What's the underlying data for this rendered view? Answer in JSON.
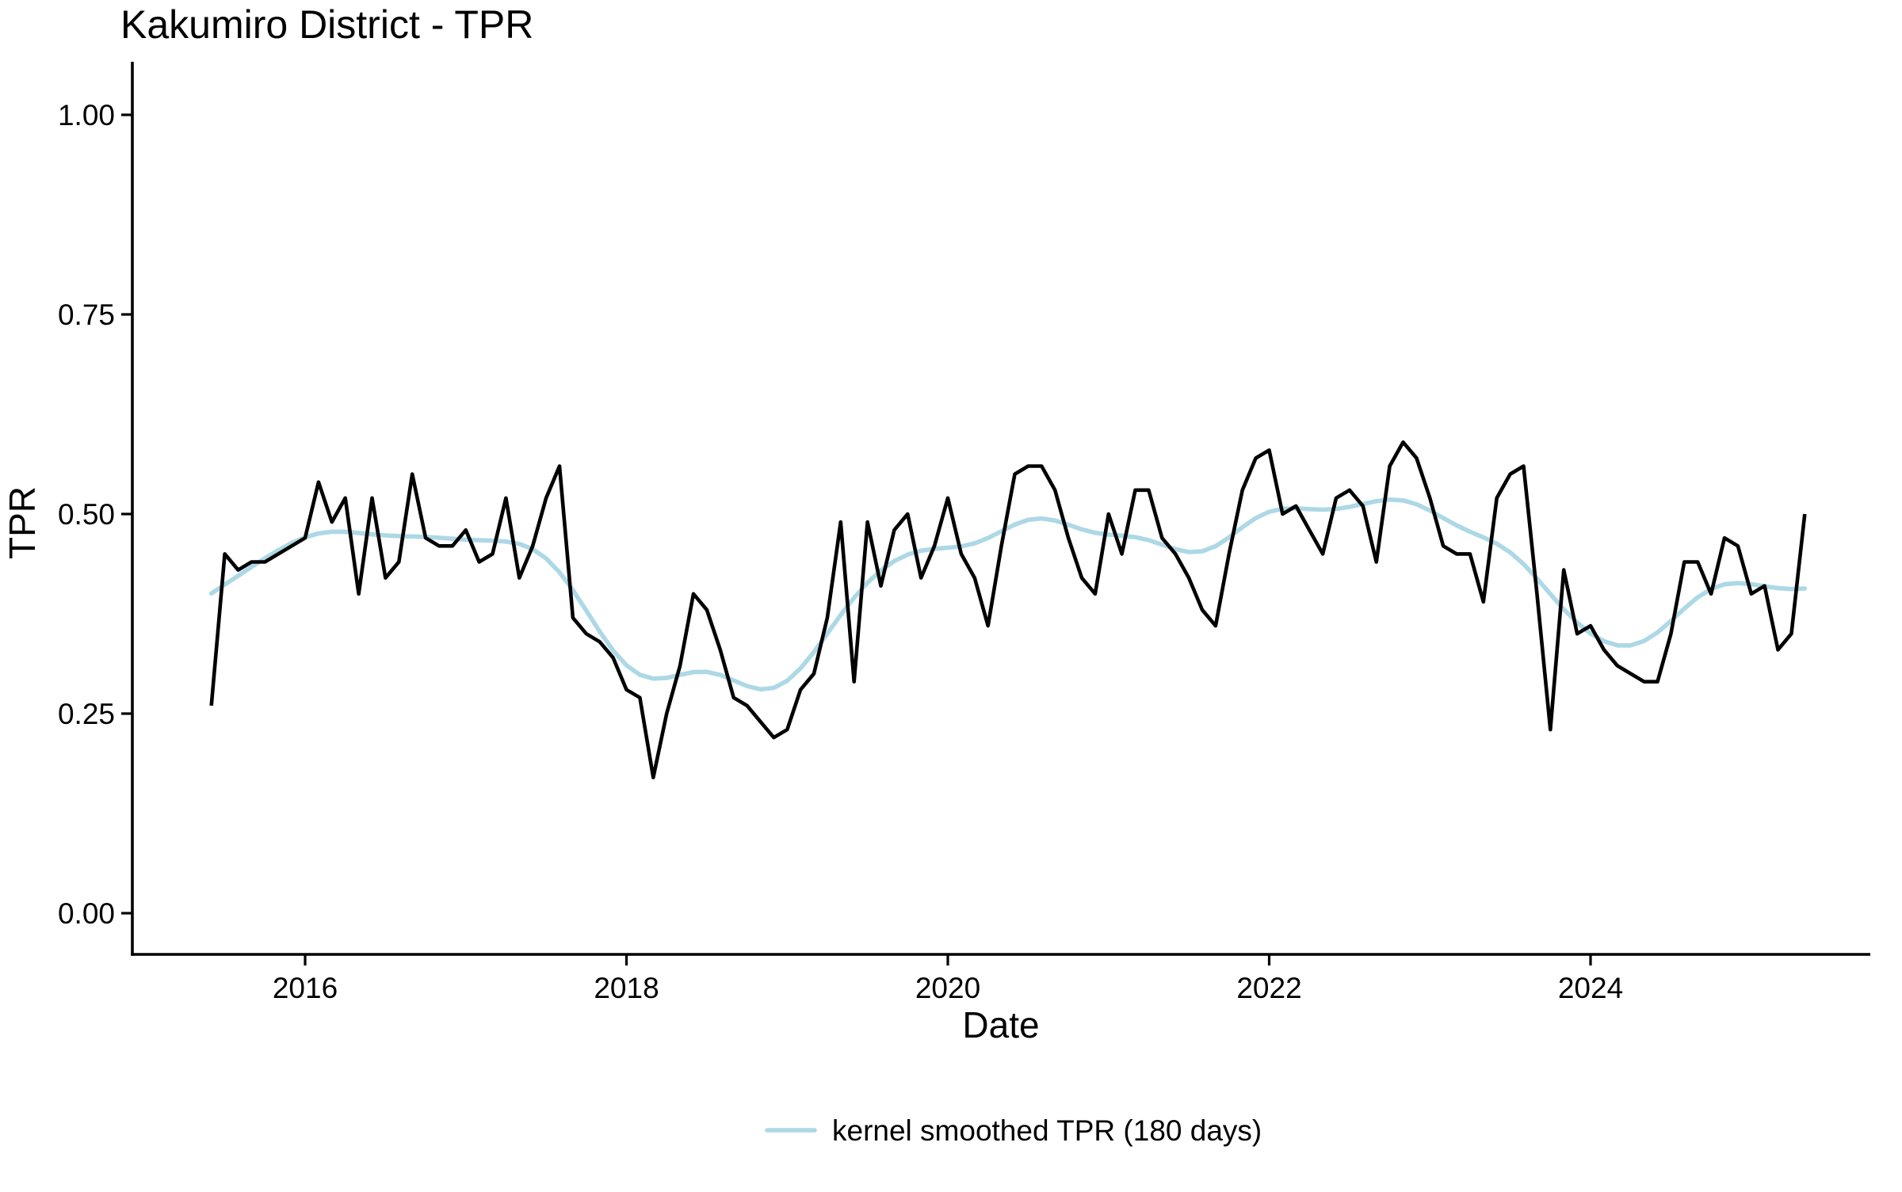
{
  "title": "Kakumiro District - TPR",
  "x_axis": {
    "label": "Date",
    "tick_labels": [
      "2016",
      "2018",
      "2020",
      "2022",
      "2024"
    ]
  },
  "y_axis": {
    "label": "TPR",
    "tick_labels": [
      "1.00",
      "0.75",
      "0.50",
      "0.25",
      "0.00"
    ]
  },
  "legend": {
    "items": [
      {
        "label": "kernel smoothed TPR (180 days)",
        "color": "#ADD8E6"
      }
    ]
  },
  "colors": {
    "raw_line": "#000000",
    "smoothed_line": "#ADD8E6",
    "axis": "#000000",
    "text": "#000000",
    "background": "#ffffff"
  },
  "chart_data": {
    "type": "line",
    "title": "Kakumiro District - TPR",
    "xlabel": "Date",
    "ylabel": "TPR",
    "x_start": "2015-06",
    "x_end": "2025-05",
    "frequency": "monthly",
    "xlim": [
      "2014-12",
      "2025-09"
    ],
    "ylim": [
      0,
      1
    ],
    "x_tick_years": [
      2016,
      2018,
      2020,
      2022,
      2024
    ],
    "y_ticks": [
      0.0,
      0.25,
      0.5,
      0.75,
      1.0
    ],
    "grid": false,
    "legend_position": "bottom",
    "series": [
      {
        "name": "TPR",
        "role": "raw monthly TPR",
        "color": "#000000",
        "values": [
          0.26,
          0.45,
          0.43,
          0.44,
          0.44,
          0.45,
          0.46,
          0.47,
          0.54,
          0.49,
          0.52,
          0.4,
          0.52,
          0.42,
          0.44,
          0.55,
          0.47,
          0.46,
          0.46,
          0.48,
          0.44,
          0.45,
          0.52,
          0.42,
          0.46,
          0.52,
          0.56,
          0.37,
          0.35,
          0.34,
          0.32,
          0.28,
          0.27,
          0.17,
          0.25,
          0.31,
          0.4,
          0.38,
          0.33,
          0.27,
          0.26,
          0.24,
          0.22,
          0.23,
          0.28,
          0.3,
          0.37,
          0.49,
          0.29,
          0.49,
          0.41,
          0.48,
          0.5,
          0.42,
          0.46,
          0.52,
          0.45,
          0.42,
          0.36,
          0.46,
          0.55,
          0.56,
          0.56,
          0.53,
          0.47,
          0.42,
          0.4,
          0.5,
          0.45,
          0.53,
          0.53,
          0.47,
          0.45,
          0.42,
          0.38,
          0.36,
          0.45,
          0.53,
          0.57,
          0.58,
          0.5,
          0.51,
          0.48,
          0.45,
          0.52,
          0.53,
          0.51,
          0.44,
          0.56,
          0.59,
          0.57,
          0.52,
          0.46,
          0.45,
          0.45,
          0.39,
          0.52,
          0.55,
          0.56,
          0.4,
          0.23,
          0.43,
          0.35,
          0.36,
          0.33,
          0.31,
          0.3,
          0.29,
          0.29,
          0.35,
          0.44,
          0.44,
          0.4,
          0.47,
          0.46,
          0.4,
          0.41,
          0.33,
          0.35,
          0.5
        ]
      },
      {
        "name": "kernel smoothed TPR (180 days)",
        "role": "derived",
        "method": "gaussian kernel smooth of the TPR series",
        "bandwidth_days": 180,
        "color": "#ADD8E6"
      }
    ]
  }
}
